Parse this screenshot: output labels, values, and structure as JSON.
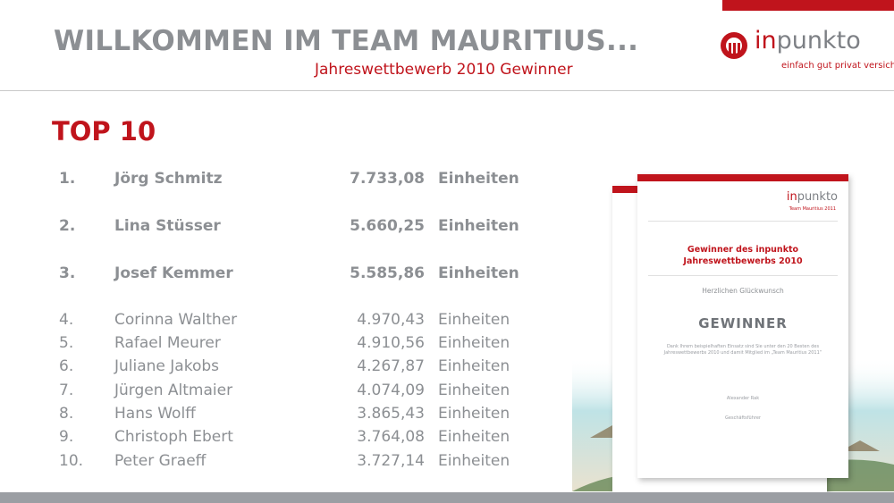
{
  "header": {
    "title": "WILLKOMMEN IM TEAM MAURITIUS...",
    "subtitle": "Jahreswettbewerb 2010 Gewinner"
  },
  "logo": {
    "name_prefix": "in",
    "name_suffix": "punkto",
    "tagline": "einfach gut privat versichert."
  },
  "heading": "TOP 10",
  "ranking": [
    {
      "rank": "1.",
      "name": "Jörg Schmitz",
      "value": "7.733,08",
      "unit": "Einheiten"
    },
    {
      "rank": "2.",
      "name": "Lina Stüsser",
      "value": "5.660,25",
      "unit": "Einheiten"
    },
    {
      "rank": "3.",
      "name": "Josef Kemmer",
      "value": "5.585,86",
      "unit": "Einheiten"
    },
    {
      "rank": "4.",
      "name": "Corinna Walther",
      "value": "4.970,43",
      "unit": "Einheiten"
    },
    {
      "rank": "5.",
      "name": "Rafael Meurer",
      "value": "4.910,56",
      "unit": "Einheiten"
    },
    {
      "rank": "6.",
      "name": "Juliane Jakobs",
      "value": "4.267,87",
      "unit": "Einheiten"
    },
    {
      "rank": "7.",
      "name": "Jürgen Altmaier",
      "value": "4.074,09",
      "unit": "Einheiten"
    },
    {
      "rank": "8.",
      "name": "Hans Wolff",
      "value": "3.865,43",
      "unit": "Einheiten"
    },
    {
      "rank": "9.",
      "name": "Christoph Ebert",
      "value": "3.764,08",
      "unit": "Einheiten"
    },
    {
      "rank": "10.",
      "name": "Peter Graeff",
      "value": "3.727,14",
      "unit": "Einheiten"
    }
  ],
  "certificate": {
    "logo_prefix": "in",
    "logo_suffix": "punkto",
    "logo_sub": "Team Mauritius 2011",
    "title_line1": "Gewinner des inpunkto",
    "title_line2": "Jahreswettbewerbs 2010",
    "greeting": "Herzlichen Glückwunsch",
    "winner": "GEWINNER",
    "body": "Dank Ihrem beispielhaften Einsatz sind Sie unter den 20 Besten des Jahreswettbewerbs 2010 und damit Mitglied im „Team Mauritius 2011“",
    "signature": "Alexander Rak",
    "role": "Geschäftsführer"
  },
  "colors": {
    "brand_red": "#c0141c",
    "text_gray": "#8c8f93",
    "bar_gray": "#9b9ea3"
  }
}
